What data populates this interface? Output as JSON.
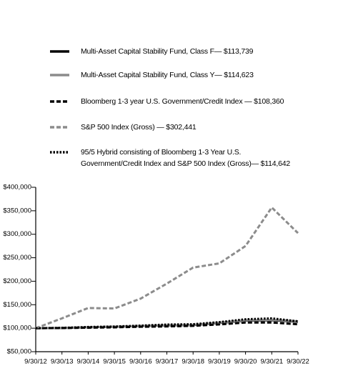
{
  "chart_data": {
    "type": "line",
    "categories": [
      "9/30/12",
      "9/30/13",
      "9/30/14",
      "9/30/15",
      "9/30/16",
      "9/30/17",
      "9/30/18",
      "9/30/19",
      "9/30/20",
      "9/30/21",
      "9/30/22"
    ],
    "series": [
      {
        "name": "Multi-Asset Capital Stability Fund, Class F— $113,739",
        "color": "#000000",
        "dash": "solid",
        "values": [
          100000,
          100500,
          102000,
          103000,
          104500,
          106000,
          106500,
          111000,
          116000,
          117000,
          113739
        ]
      },
      {
        "name": "Multi-Asset Capital Stability Fund, Class Y— $114,623",
        "color": "#8c8c8c",
        "dash": "solid",
        "values": [
          100000,
          100600,
          102100,
          103200,
          104800,
          106400,
          107000,
          111600,
          116800,
          118000,
          114623
        ]
      },
      {
        "name": "Bloomberg 1-3 year U.S. Government/Credit Index — $108,360",
        "color": "#000000",
        "dash": "dashed",
        "values": [
          100000,
          100300,
          101000,
          101800,
          103000,
          103800,
          105000,
          108000,
          112000,
          112000,
          108360
        ]
      },
      {
        "name": "S&P 500 Index (Gross) — $302,441",
        "color": "#8c8c8c",
        "dash": "dashed",
        "values": [
          100000,
          121000,
          143000,
          142000,
          163000,
          195000,
          229000,
          238000,
          275000,
          357000,
          302441
        ]
      },
      {
        "name": "95/5 Hybrid consisting of Bloomberg 1-3 Year U.S. Government/Credit Index and S&P 500 Index (Gross)— $114,642",
        "color": "#000000",
        "dash": "dotted",
        "values": [
          100000,
          100800,
          102600,
          103600,
          105500,
          107800,
          108500,
          113000,
          119000,
          121000,
          114642
        ]
      }
    ],
    "ylim": [
      50000,
      400000
    ],
    "yticks": [
      {
        "value": 50000,
        "label": "$50,000"
      },
      {
        "value": 100000,
        "label": "$100,000"
      },
      {
        "value": 150000,
        "label": "$150,000"
      },
      {
        "value": 200000,
        "label": "$200,000"
      },
      {
        "value": 250000,
        "label": "$250,000"
      },
      {
        "value": 300000,
        "label": "$300,000"
      },
      {
        "value": 350000,
        "label": "$350,000"
      },
      {
        "value": 400000,
        "label": "$400,000"
      }
    ]
  }
}
